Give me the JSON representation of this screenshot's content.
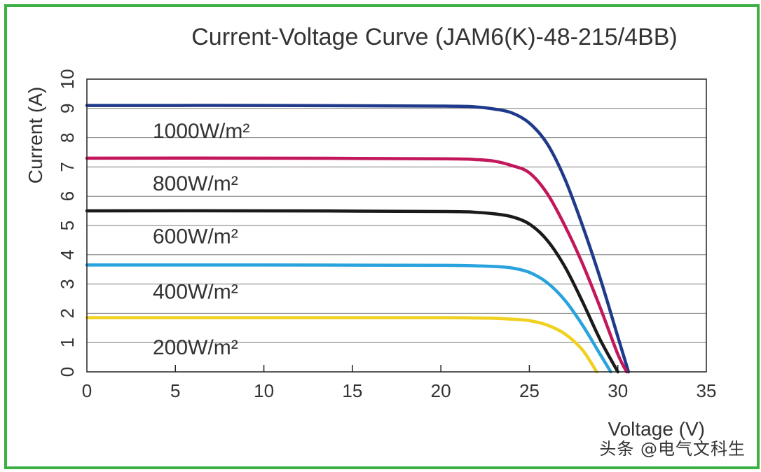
{
  "colors": {
    "frame": "#3cb043",
    "grid": "#777777",
    "axis_text": "#333333"
  },
  "watermark": "头条 @电气文科生",
  "chart_data": {
    "type": "line",
    "title": "Current-Voltage Curve (JAM6(K)-48-215/4BB)",
    "xlabel": "Voltage (V)",
    "ylabel": "Current (A)",
    "xlim": [
      0,
      35
    ],
    "ylim": [
      0,
      10
    ],
    "xticks": [
      0,
      5,
      10,
      15,
      20,
      25,
      30,
      35
    ],
    "yticks": [
      0,
      1,
      2,
      3,
      4,
      5,
      6,
      7,
      8,
      9,
      10
    ],
    "grid": "horizontal",
    "series": [
      {
        "name": "1000W/m²",
        "color": "#1f3a8a",
        "x": [
          0,
          10,
          20,
          22,
          23,
          24,
          25,
          26,
          27,
          28,
          29,
          30,
          30.6
        ],
        "y": [
          9.1,
          9.1,
          9.08,
          9.05,
          8.98,
          8.85,
          8.5,
          7.8,
          6.6,
          5.0,
          3.2,
          1.2,
          0
        ]
      },
      {
        "name": "800W/m²",
        "color": "#c2185b",
        "x": [
          0,
          10,
          20,
          22,
          23,
          24,
          25,
          26,
          27,
          28,
          29,
          30,
          30.5
        ],
        "y": [
          7.3,
          7.3,
          7.28,
          7.25,
          7.2,
          7.05,
          6.8,
          6.1,
          5.0,
          3.7,
          2.2,
          0.6,
          0
        ]
      },
      {
        "name": "600W/m²",
        "color": "#1a1a1a",
        "x": [
          0,
          10,
          20,
          22,
          23,
          24,
          25,
          26,
          27,
          28,
          29,
          30
        ],
        "y": [
          5.5,
          5.5,
          5.48,
          5.45,
          5.4,
          5.3,
          5.05,
          4.5,
          3.6,
          2.4,
          1.1,
          0
        ]
      },
      {
        "name": "400W/m²",
        "color": "#29a3dd",
        "x": [
          0,
          10,
          20,
          22,
          23,
          24,
          25,
          26,
          27,
          28,
          29,
          29.6
        ],
        "y": [
          3.65,
          3.65,
          3.64,
          3.62,
          3.6,
          3.55,
          3.4,
          3.05,
          2.45,
          1.6,
          0.6,
          0
        ]
      },
      {
        "name": "200W/m²",
        "color": "#f0d020",
        "x": [
          0,
          10,
          20,
          22,
          23,
          24,
          25,
          26,
          27,
          28,
          28.8
        ],
        "y": [
          1.85,
          1.85,
          1.85,
          1.84,
          1.83,
          1.8,
          1.75,
          1.6,
          1.3,
          0.75,
          0
        ]
      }
    ],
    "series_label_positions": [
      9.0,
      7.2,
      5.4,
      3.5,
      1.6
    ]
  }
}
